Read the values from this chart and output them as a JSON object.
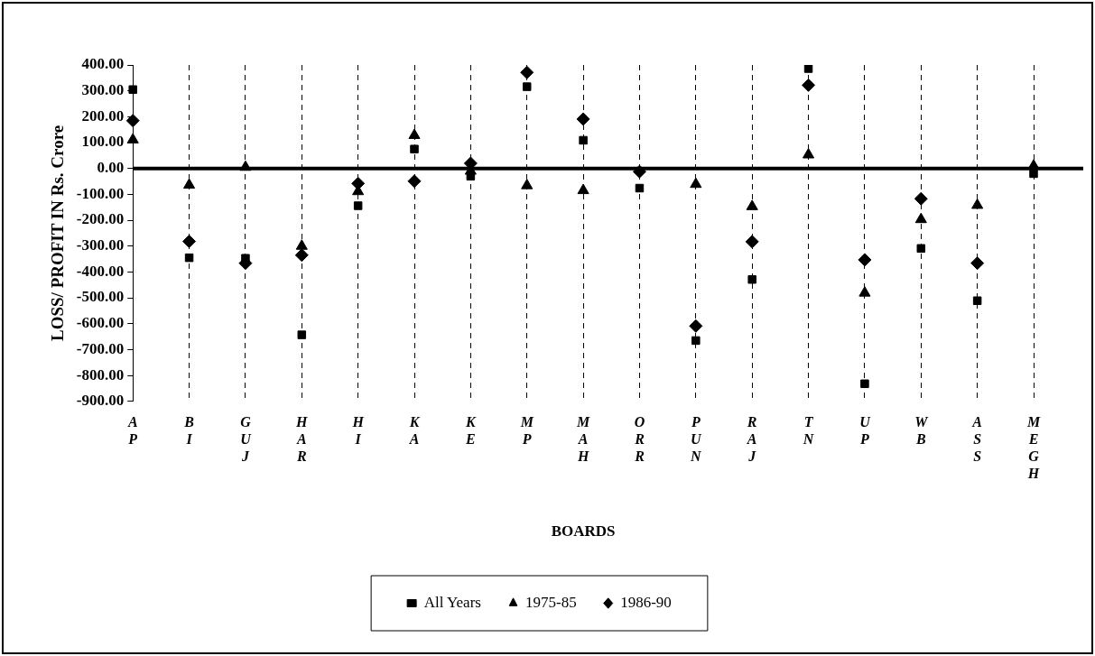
{
  "chart_data": {
    "type": "scatter",
    "xlabel": "BOARDS",
    "ylabel": "LOSS/ PROFIT IN Rs. Crore",
    "categories": [
      "AP",
      "BI",
      "GUJ",
      "HAR",
      "HI",
      "KA",
      "KE",
      "MP",
      "MAH",
      "ORR",
      "PUN",
      "RAJ",
      "TN",
      "UP",
      "WB",
      "ASS",
      "MEGH"
    ],
    "series": [
      {
        "name": "All Years",
        "color": "#000000",
        "marker": "square",
        "values": [
          305,
          -345,
          -347,
          -643,
          -144,
          75,
          -30,
          316,
          109,
          -76,
          -665,
          -429,
          386,
          -832,
          -309,
          -511,
          -20
        ]
      },
      {
        "name": "1975-85",
        "color": "#000000",
        "marker": "triangle",
        "values": [
          111,
          -64,
          5,
          -300,
          -89,
          128,
          -10,
          -66,
          -85,
          null,
          -61,
          -147,
          53,
          -481,
          -197,
          -142,
          10
        ]
      },
      {
        "name": "1986-90",
        "color": "#000000",
        "marker": "diamond",
        "values": [
          185,
          -282,
          -366,
          -335,
          -58,
          -49,
          20,
          371,
          191,
          -12,
          -609,
          -283,
          322,
          -353,
          -117,
          -366,
          null
        ]
      }
    ],
    "ylim": [
      -900,
      400
    ],
    "yticks": [
      {
        "value": 400,
        "label": "400.00"
      },
      {
        "value": 300,
        "label": "300.00"
      },
      {
        "value": 200,
        "label": "200.00"
      },
      {
        "value": 100,
        "label": "100.00"
      },
      {
        "value": 0,
        "label": "0.00"
      },
      {
        "value": -100,
        "label": "-100.00"
      },
      {
        "value": -200,
        "label": "-200.00"
      },
      {
        "value": -300,
        "label": "-300.00"
      },
      {
        "value": -400,
        "label": "-400.00"
      },
      {
        "value": -500,
        "label": "-500.00"
      },
      {
        "value": -600,
        "label": "-600.00"
      },
      {
        "value": -700,
        "label": "-700.00"
      },
      {
        "value": -800,
        "label": "-800.00"
      },
      {
        "value": -900,
        "label": "-900.00"
      }
    ],
    "ref_lines": [
      {
        "axis": "y",
        "value": 0
      }
    ],
    "grid": "x",
    "legend": "bottom"
  }
}
